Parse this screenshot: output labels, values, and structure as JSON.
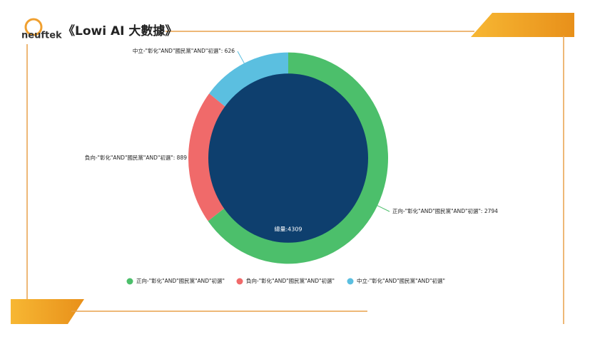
{
  "logo": "neuftek",
  "chart_data": {
    "type": "donut",
    "title": "《Lowi AI 大數據》",
    "categories": [
      "正向-\"彰化\"AND\"國民黨\"AND\"初選\"",
      "負向-\"彰化\"AND\"國民黨\"AND\"初選\"",
      "中立-\"彰化\"AND\"國民黨\"AND\"初選\""
    ],
    "values": [
      2794,
      889,
      626
    ],
    "value_labels": [
      "正向-\"彰化\"AND\"國民黨\"AND\"初選\": 2794",
      "負向-\"彰化\"AND\"國民黨\"AND\"初選\": 889",
      "中立-\"彰化\"AND\"國民黨\"AND\"初選\": 626"
    ],
    "colors": [
      "#4cbf6b",
      "#f06a6a",
      "#5bbfe0"
    ],
    "center_label": "總量:4309",
    "center_color": "#0e3f6e"
  }
}
